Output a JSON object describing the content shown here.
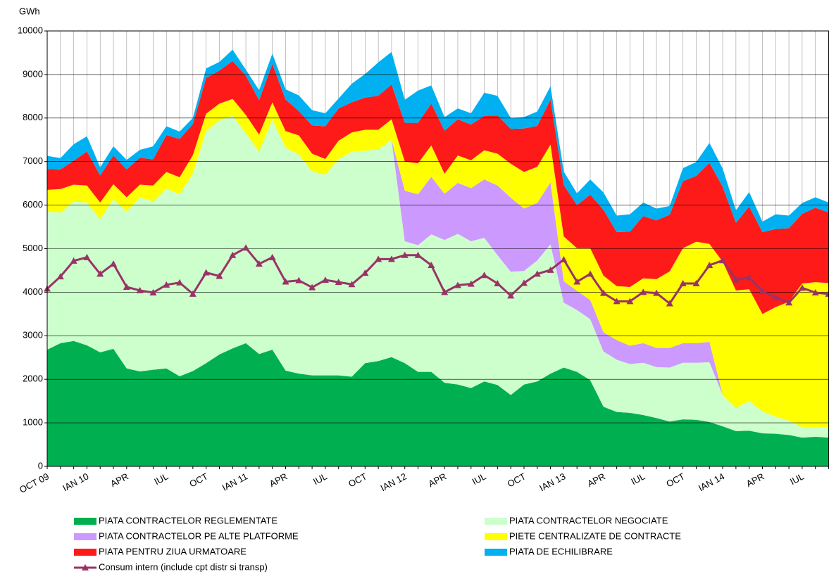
{
  "chart_data": {
    "type": "area",
    "stacked": true,
    "y_axis_label": "GWh",
    "categories": [
      "OCT 09",
      null,
      null,
      "IAN 10",
      null,
      null,
      "APR",
      null,
      null,
      "IUL",
      null,
      null,
      "OCT",
      null,
      null,
      "IAN 11",
      null,
      null,
      "APR",
      null,
      null,
      "IUL",
      null,
      null,
      "OCT",
      null,
      null,
      "IAN 12",
      null,
      null,
      "APR",
      null,
      null,
      "IUL",
      null,
      null,
      "OCT",
      null,
      null,
      "IAN 13",
      null,
      null,
      "APR",
      null,
      null,
      "IUL",
      null,
      null,
      "OCT",
      null,
      null,
      "IAN 14",
      null,
      null,
      "APR",
      null,
      null,
      "IUL",
      null,
      null
    ],
    "ylim": [
      0,
      10000
    ],
    "yticks": [
      0,
      1000,
      2000,
      3000,
      4000,
      5000,
      6000,
      7000,
      8000,
      9000,
      10000
    ],
    "grid": true,
    "series": [
      {
        "name": "PIATA CONTRACTELOR REGLEMENTATE",
        "color": "#00b050",
        "values": [
          2680,
          2830,
          2880,
          2780,
          2620,
          2700,
          2250,
          2180,
          2220,
          2250,
          2070,
          2190,
          2370,
          2570,
          2710,
          2830,
          2580,
          2680,
          2200,
          2130,
          2090,
          2090,
          2090,
          2060,
          2370,
          2420,
          2510,
          2370,
          2170,
          2170,
          1920,
          1880,
          1800,
          1950,
          1870,
          1640,
          1880,
          1950,
          2130,
          2270,
          2170,
          1980,
          1370,
          1250,
          1230,
          1180,
          1110,
          1030,
          1080,
          1070,
          1020,
          920,
          810,
          820,
          760,
          750,
          720,
          660,
          680,
          660
        ]
      },
      {
        "name": "PIATA CONTRACTELOR NEGOCIATE",
        "color": "#ccffcc",
        "values": [
          3170,
          3000,
          3200,
          3280,
          3060,
          3430,
          3600,
          4000,
          3860,
          4130,
          4180,
          4530,
          5330,
          5380,
          5340,
          4820,
          4650,
          5280,
          5120,
          5030,
          4690,
          4610,
          4970,
          5170,
          4880,
          4860,
          4990,
          2800,
          2910,
          3160,
          3280,
          3460,
          3370,
          3300,
          2980,
          2830,
          2610,
          2780,
          2970,
          1490,
          1420,
          1400,
          1270,
          1200,
          1120,
          1200,
          1170,
          1240,
          1300,
          1310,
          1370,
          720,
          530,
          680,
          500,
          390,
          330,
          240,
          220,
          240
        ]
      },
      {
        "name": "PIATA CONTRACTELOR PE ALTE PLATFORME",
        "color": "#cc99ff",
        "values": [
          0,
          0,
          0,
          0,
          0,
          0,
          0,
          0,
          0,
          0,
          0,
          0,
          0,
          0,
          0,
          0,
          0,
          0,
          0,
          0,
          0,
          0,
          0,
          0,
          0,
          0,
          0,
          1160,
          1170,
          1320,
          1060,
          1170,
          1220,
          1340,
          1600,
          1700,
          1430,
          1320,
          1420,
          490,
          440,
          440,
          440,
          450,
          420,
          450,
          440,
          450,
          450,
          450,
          470,
          0,
          0,
          0,
          0,
          0,
          0,
          0,
          0,
          0
        ]
      },
      {
        "name": "PIETE CENTRALIZATE DE CONTRACTE",
        "color": "#ffff00",
        "values": [
          500,
          540,
          390,
          390,
          380,
          350,
          330,
          290,
          370,
          380,
          390,
          430,
          400,
          380,
          390,
          420,
          390,
          400,
          380,
          440,
          400,
          360,
          420,
          440,
          480,
          450,
          470,
          670,
          710,
          720,
          460,
          630,
          640,
          670,
          730,
          780,
          840,
          830,
          870,
          1030,
          980,
          1190,
          1300,
          1240,
          1350,
          1490,
          1580,
          1760,
          2180,
          2330,
          2250,
          3060,
          2700,
          2570,
          2240,
          2520,
          2730,
          3300,
          3330,
          3310
        ]
      },
      {
        "name": "PIATA PENTRU ZIUA URMATOARE",
        "color": "#ff1a1a",
        "values": [
          480,
          450,
          550,
          780,
          620,
          660,
          640,
          620,
          600,
          850,
          880,
          710,
          820,
          760,
          870,
          900,
          790,
          880,
          720,
          560,
          650,
          750,
          740,
          690,
          740,
          780,
          800,
          890,
          930,
          960,
          990,
          830,
          820,
          790,
          880,
          800,
          1000,
          940,
          1030,
          1180,
          990,
          1230,
          1510,
          1240,
          1270,
          1430,
          1350,
          1300,
          1540,
          1510,
          1860,
          1720,
          1550,
          1900,
          1880,
          1790,
          1690,
          1600,
          1710,
          1620
        ]
      },
      {
        "name": "PIATA DE ECHILIBRARE",
        "color": "#00b0f0",
        "values": [
          300,
          260,
          380,
          350,
          190,
          210,
          220,
          180,
          300,
          200,
          170,
          140,
          220,
          200,
          260,
          140,
          230,
          240,
          240,
          360,
          350,
          300,
          230,
          430,
          540,
          770,
          750,
          530,
          740,
          420,
          310,
          250,
          260,
          530,
          450,
          250,
          260,
          330,
          310,
          310,
          270,
          350,
          400,
          380,
          400,
          310,
          270,
          200,
          300,
          320,
          460,
          420,
          290,
          330,
          240,
          340,
          290,
          250,
          240,
          230
        ]
      },
      {
        "name": "Consum intern (include cpt distr si transp)",
        "color": "#993366",
        "type": "line",
        "marker": "triangle",
        "values": [
          4080,
          4360,
          4720,
          4800,
          4420,
          4650,
          4120,
          4040,
          3990,
          4170,
          4220,
          3960,
          4450,
          4370,
          4850,
          5020,
          4650,
          4800,
          4240,
          4270,
          4110,
          4280,
          4230,
          4180,
          4440,
          4760,
          4760,
          4850,
          4850,
          4620,
          4000,
          4160,
          4190,
          4390,
          4200,
          3920,
          4210,
          4420,
          4510,
          4750,
          4240,
          4420,
          3980,
          3790,
          3790,
          4000,
          3980,
          3740,
          4200,
          4200,
          4620,
          4730,
          4290,
          4340,
          4020,
          3880,
          3760,
          4100,
          3990,
          3960
        ]
      }
    ]
  }
}
